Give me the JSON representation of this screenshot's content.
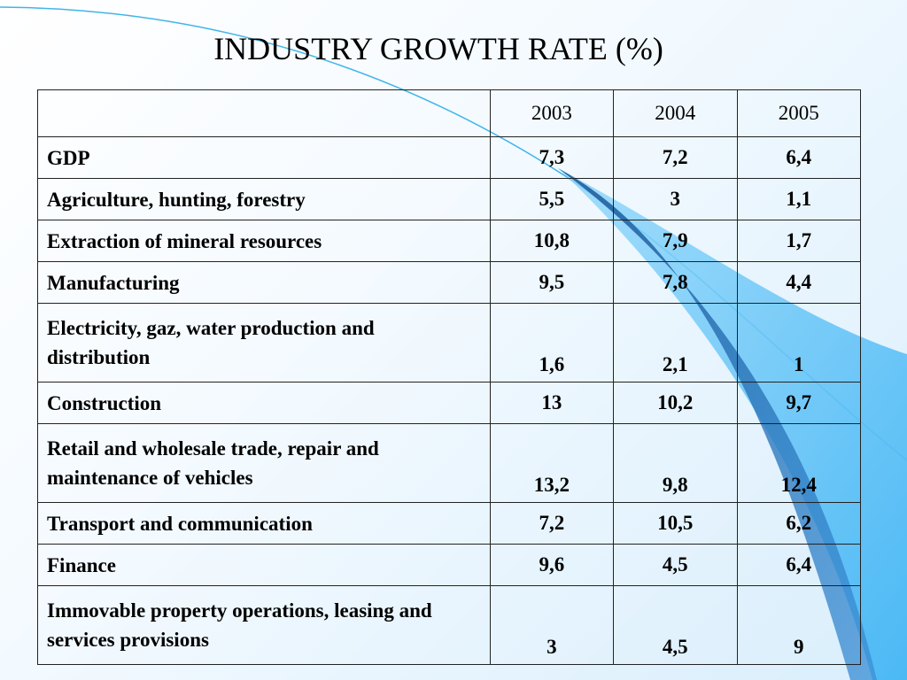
{
  "title": "INDUSTRY GROWTH RATE (%)",
  "table": {
    "header": [
      "",
      "2003",
      "2004",
      "2005"
    ],
    "rows": [
      {
        "label": "GDP",
        "values": [
          "7,3",
          "7,2",
          "6,4"
        ],
        "lines": 1
      },
      {
        "label": "Agriculture, hunting, forestry",
        "values": [
          "5,5",
          "3",
          "1,1"
        ],
        "lines": 1
      },
      {
        "label": "Extraction of mineral resources",
        "values": [
          "10,8",
          "7,9",
          "1,7"
        ],
        "lines": 1
      },
      {
        "label": "Manufacturing",
        "values": [
          "9,5",
          "7,8",
          "4,4"
        ],
        "lines": 1
      },
      {
        "label": "Electricity, gaz, water production and distribution",
        "values": [
          "1,6",
          "2,1",
          "1"
        ],
        "lines": 2
      },
      {
        "label": "Construction",
        "values": [
          "13",
          "10,2",
          "9,7"
        ],
        "lines": 1
      },
      {
        "label": "Retail and wholesale trade, repair and maintenance of vehicles",
        "values": [
          "13,2",
          "9,8",
          "12,4"
        ],
        "lines": 2
      },
      {
        "label": "Transport and communication",
        "values": [
          "7,2",
          "10,5",
          "6,2"
        ],
        "lines": 1
      },
      {
        "label": "Finance",
        "values": [
          "9,6",
          "4,5",
          "6,4"
        ],
        "lines": 1
      },
      {
        "label": "Immovable property operations, leasing and services  provisions",
        "values": [
          "3",
          "4,5",
          "9"
        ],
        "lines": 2
      }
    ]
  },
  "colors": {
    "swoosh_dark": "#2a6fb5",
    "swoosh_light": "#5cc0f5",
    "curve_line": "#3fb5e8"
  }
}
